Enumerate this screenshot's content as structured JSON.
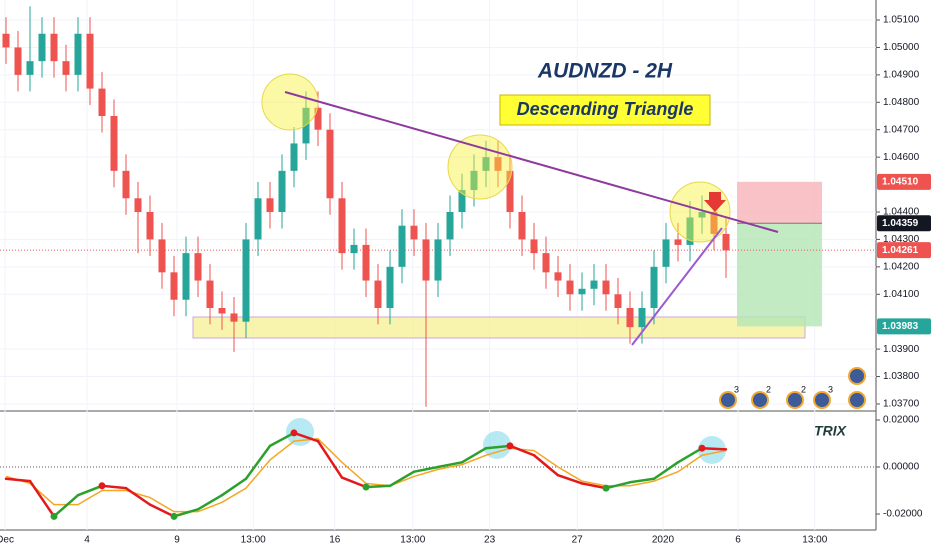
{
  "chart_data": {
    "type": "candlestick",
    "title": "AUDNZD - 2H",
    "annotations": {
      "pattern": "Descending Triangle",
      "indicator": "TRIX"
    },
    "xlim": [
      -0.5,
      72.5
    ],
    "xticks": [
      {
        "value": -0.08,
        "label": "Dec"
      },
      {
        "value": 6.75,
        "label": "4"
      },
      {
        "value": 14.25,
        "label": "9"
      },
      {
        "value": 20.6,
        "label": "13:00"
      },
      {
        "value": 27.4,
        "label": "16"
      },
      {
        "value": 33.9,
        "label": "13:00"
      },
      {
        "value": 40.3,
        "label": "23"
      },
      {
        "value": 47.6,
        "label": "27"
      },
      {
        "value": 54.75,
        "label": "2020"
      },
      {
        "value": 61,
        "label": "6"
      },
      {
        "value": 67.4,
        "label": "13:00"
      }
    ],
    "ylim": [
      1.03678,
      1.05173
    ],
    "yticks": [
      {
        "value": 1.051,
        "label": "1.05100"
      },
      {
        "value": 1.05,
        "label": "1.05000"
      },
      {
        "value": 1.049,
        "label": "1.04900"
      },
      {
        "value": 1.048,
        "label": "1.04800"
      },
      {
        "value": 1.047,
        "label": "1.04700"
      },
      {
        "value": 1.046,
        "label": "1.04600"
      },
      {
        "value": 1.044,
        "label": "1.04400"
      },
      {
        "value": 1.043,
        "label": "1.04300"
      },
      {
        "value": 1.042,
        "label": "1.04200"
      },
      {
        "value": 1.041,
        "label": "1.04100"
      },
      {
        "value": 1.039,
        "label": "1.03900"
      },
      {
        "value": 1.038,
        "label": "1.03800"
      },
      {
        "value": 1.037,
        "label": "1.03700"
      }
    ],
    "up_color": "#26a69a",
    "down_color": "#ef5350",
    "candles": [
      [
        1.0505,
        1.0511,
        1.0494,
        1.05
      ],
      [
        1.05,
        1.0506,
        1.0484,
        1.049
      ],
      [
        1.049,
        1.0515,
        1.0484,
        1.0495
      ],
      [
        1.0495,
        1.0511,
        1.0489,
        1.0505
      ],
      [
        1.0505,
        1.0511,
        1.0489,
        1.0495
      ],
      [
        1.0495,
        1.0501,
        1.0484,
        1.049
      ],
      [
        1.049,
        1.0511,
        1.0484,
        1.0505
      ],
      [
        1.0505,
        1.0511,
        1.0479,
        1.0485
      ],
      [
        1.0485,
        1.0491,
        1.0469,
        1.0475
      ],
      [
        1.0475,
        1.0481,
        1.0449,
        1.0455
      ],
      [
        1.0455,
        1.0461,
        1.0439,
        1.0445
      ],
      [
        1.0445,
        1.0451,
        1.0425,
        1.044
      ],
      [
        1.044,
        1.0446,
        1.0424,
        1.043
      ],
      [
        1.043,
        1.0436,
        1.0412,
        1.0418
      ],
      [
        1.0418,
        1.0424,
        1.0402,
        1.0408
      ],
      [
        1.0408,
        1.0431,
        1.0402,
        1.0425
      ],
      [
        1.0425,
        1.0431,
        1.0409,
        1.0415
      ],
      [
        1.0415,
        1.0421,
        1.0399,
        1.0405
      ],
      [
        1.0405,
        1.0411,
        1.0397,
        1.0403
      ],
      [
        1.0403,
        1.0409,
        1.0389,
        1.04
      ],
      [
        1.04,
        1.0436,
        1.0394,
        1.043
      ],
      [
        1.043,
        1.0451,
        1.0424,
        1.0445
      ],
      [
        1.0445,
        1.0451,
        1.0434,
        1.044
      ],
      [
        1.044,
        1.0461,
        1.0434,
        1.0455
      ],
      [
        1.0455,
        1.0471,
        1.0449,
        1.0465
      ],
      [
        1.0465,
        1.0484,
        1.0459,
        1.0478
      ],
      [
        1.0478,
        1.0484,
        1.0464,
        1.047
      ],
      [
        1.047,
        1.0476,
        1.0439,
        1.0445
      ],
      [
        1.0445,
        1.0451,
        1.0419,
        1.0425
      ],
      [
        1.0425,
        1.0434,
        1.0419,
        1.0428
      ],
      [
        1.0428,
        1.0434,
        1.0409,
        1.0415
      ],
      [
        1.0415,
        1.0421,
        1.0399,
        1.0405
      ],
      [
        1.0405,
        1.0426,
        1.0399,
        1.042
      ],
      [
        1.042,
        1.0441,
        1.0414,
        1.0435
      ],
      [
        1.0435,
        1.0441,
        1.0424,
        1.043
      ],
      [
        1.043,
        1.0436,
        1.0369,
        1.0415
      ],
      [
        1.0415,
        1.0436,
        1.0409,
        1.043
      ],
      [
        1.043,
        1.0446,
        1.0424,
        1.044
      ],
      [
        1.044,
        1.0454,
        1.0434,
        1.0448
      ],
      [
        1.0448,
        1.0461,
        1.0442,
        1.0455
      ],
      [
        1.0455,
        1.0466,
        1.0449,
        1.046
      ],
      [
        1.046,
        1.0466,
        1.0449,
        1.0455
      ],
      [
        1.0455,
        1.0461,
        1.0434,
        1.044
      ],
      [
        1.044,
        1.0446,
        1.0424,
        1.043
      ],
      [
        1.043,
        1.0436,
        1.0419,
        1.0425
      ],
      [
        1.0425,
        1.0431,
        1.0412,
        1.0418
      ],
      [
        1.0418,
        1.0424,
        1.0409,
        1.0415
      ],
      [
        1.0415,
        1.0421,
        1.0404,
        1.041
      ],
      [
        1.041,
        1.0418,
        1.0404,
        1.0412
      ],
      [
        1.0412,
        1.0421,
        1.0406,
        1.0415
      ],
      [
        1.0415,
        1.0421,
        1.0404,
        1.041
      ],
      [
        1.041,
        1.0416,
        1.0399,
        1.0405
      ],
      [
        1.0405,
        1.0411,
        1.0392,
        1.0398
      ],
      [
        1.0398,
        1.0411,
        1.0392,
        1.0405
      ],
      [
        1.0405,
        1.0426,
        1.0399,
        1.042
      ],
      [
        1.042,
        1.0436,
        1.0414,
        1.043
      ],
      [
        1.043,
        1.0436,
        1.0422,
        1.0428
      ],
      [
        1.0428,
        1.0444,
        1.0422,
        1.0438
      ],
      [
        1.0438,
        1.0446,
        1.0432,
        1.044
      ],
      [
        1.044,
        1.0446,
        1.0426,
        1.0432
      ],
      [
        1.0432,
        1.0438,
        1.0416,
        1.0426
      ]
    ],
    "price_tags": [
      {
        "value": 1.0451,
        "label": "1.04510",
        "color": "#ef5350"
      },
      {
        "value": 1.04359,
        "label": "1.04359",
        "color": "#131722"
      },
      {
        "value": 1.04261,
        "label": "1.04261",
        "color": "#ef5350"
      },
      {
        "value": 1.03983,
        "label": "1.03983",
        "color": "#26a69a"
      }
    ],
    "events": [
      "3",
      "2",
      "2",
      "3"
    ],
    "trix": {
      "x": [
        0,
        2,
        4,
        6,
        8,
        10,
        12,
        14,
        16,
        18,
        20,
        22,
        24,
        26,
        28,
        30,
        32,
        34,
        36,
        38,
        40,
        42,
        44,
        46,
        48,
        50,
        52,
        54,
        56,
        58,
        60
      ],
      "ylim": [
        -0.0268,
        0.0234
      ],
      "yticks": [
        {
          "value": 0.02,
          "label": "0.02000"
        },
        {
          "value": 0,
          "label": "0.00000"
        },
        {
          "value": -0.02,
          "label": "-0.02000"
        }
      ],
      "series": [
        {
          "color_up": "#2ca02c",
          "color_down": "#e31a1c",
          "values": [
            -0.005,
            -0.006,
            -0.021,
            -0.012,
            -0.008,
            -0.009,
            -0.016,
            -0.021,
            -0.018,
            -0.012,
            -0.005,
            0.009,
            0.0145,
            0.011,
            -0.0045,
            -0.0085,
            -0.008,
            -0.002,
            0.0,
            0.002,
            0.008,
            0.009,
            0.005,
            -0.0035,
            -0.007,
            -0.009,
            -0.0065,
            -0.005,
            0.002,
            0.008,
            0.0075
          ]
        },
        {
          "color": "#f5a623",
          "values": [
            -0.004,
            -0.007,
            -0.016,
            -0.016,
            -0.01,
            -0.01,
            -0.013,
            -0.019,
            -0.019,
            -0.015,
            -0.009,
            0.003,
            0.011,
            0.012,
            0.002,
            -0.007,
            -0.008,
            -0.004,
            -0.001,
            0.001,
            0.005,
            0.008,
            0.007,
            0.0,
            -0.006,
            -0.008,
            -0.008,
            -0.006,
            -0.002,
            0.005,
            0.007
          ]
        }
      ]
    }
  }
}
